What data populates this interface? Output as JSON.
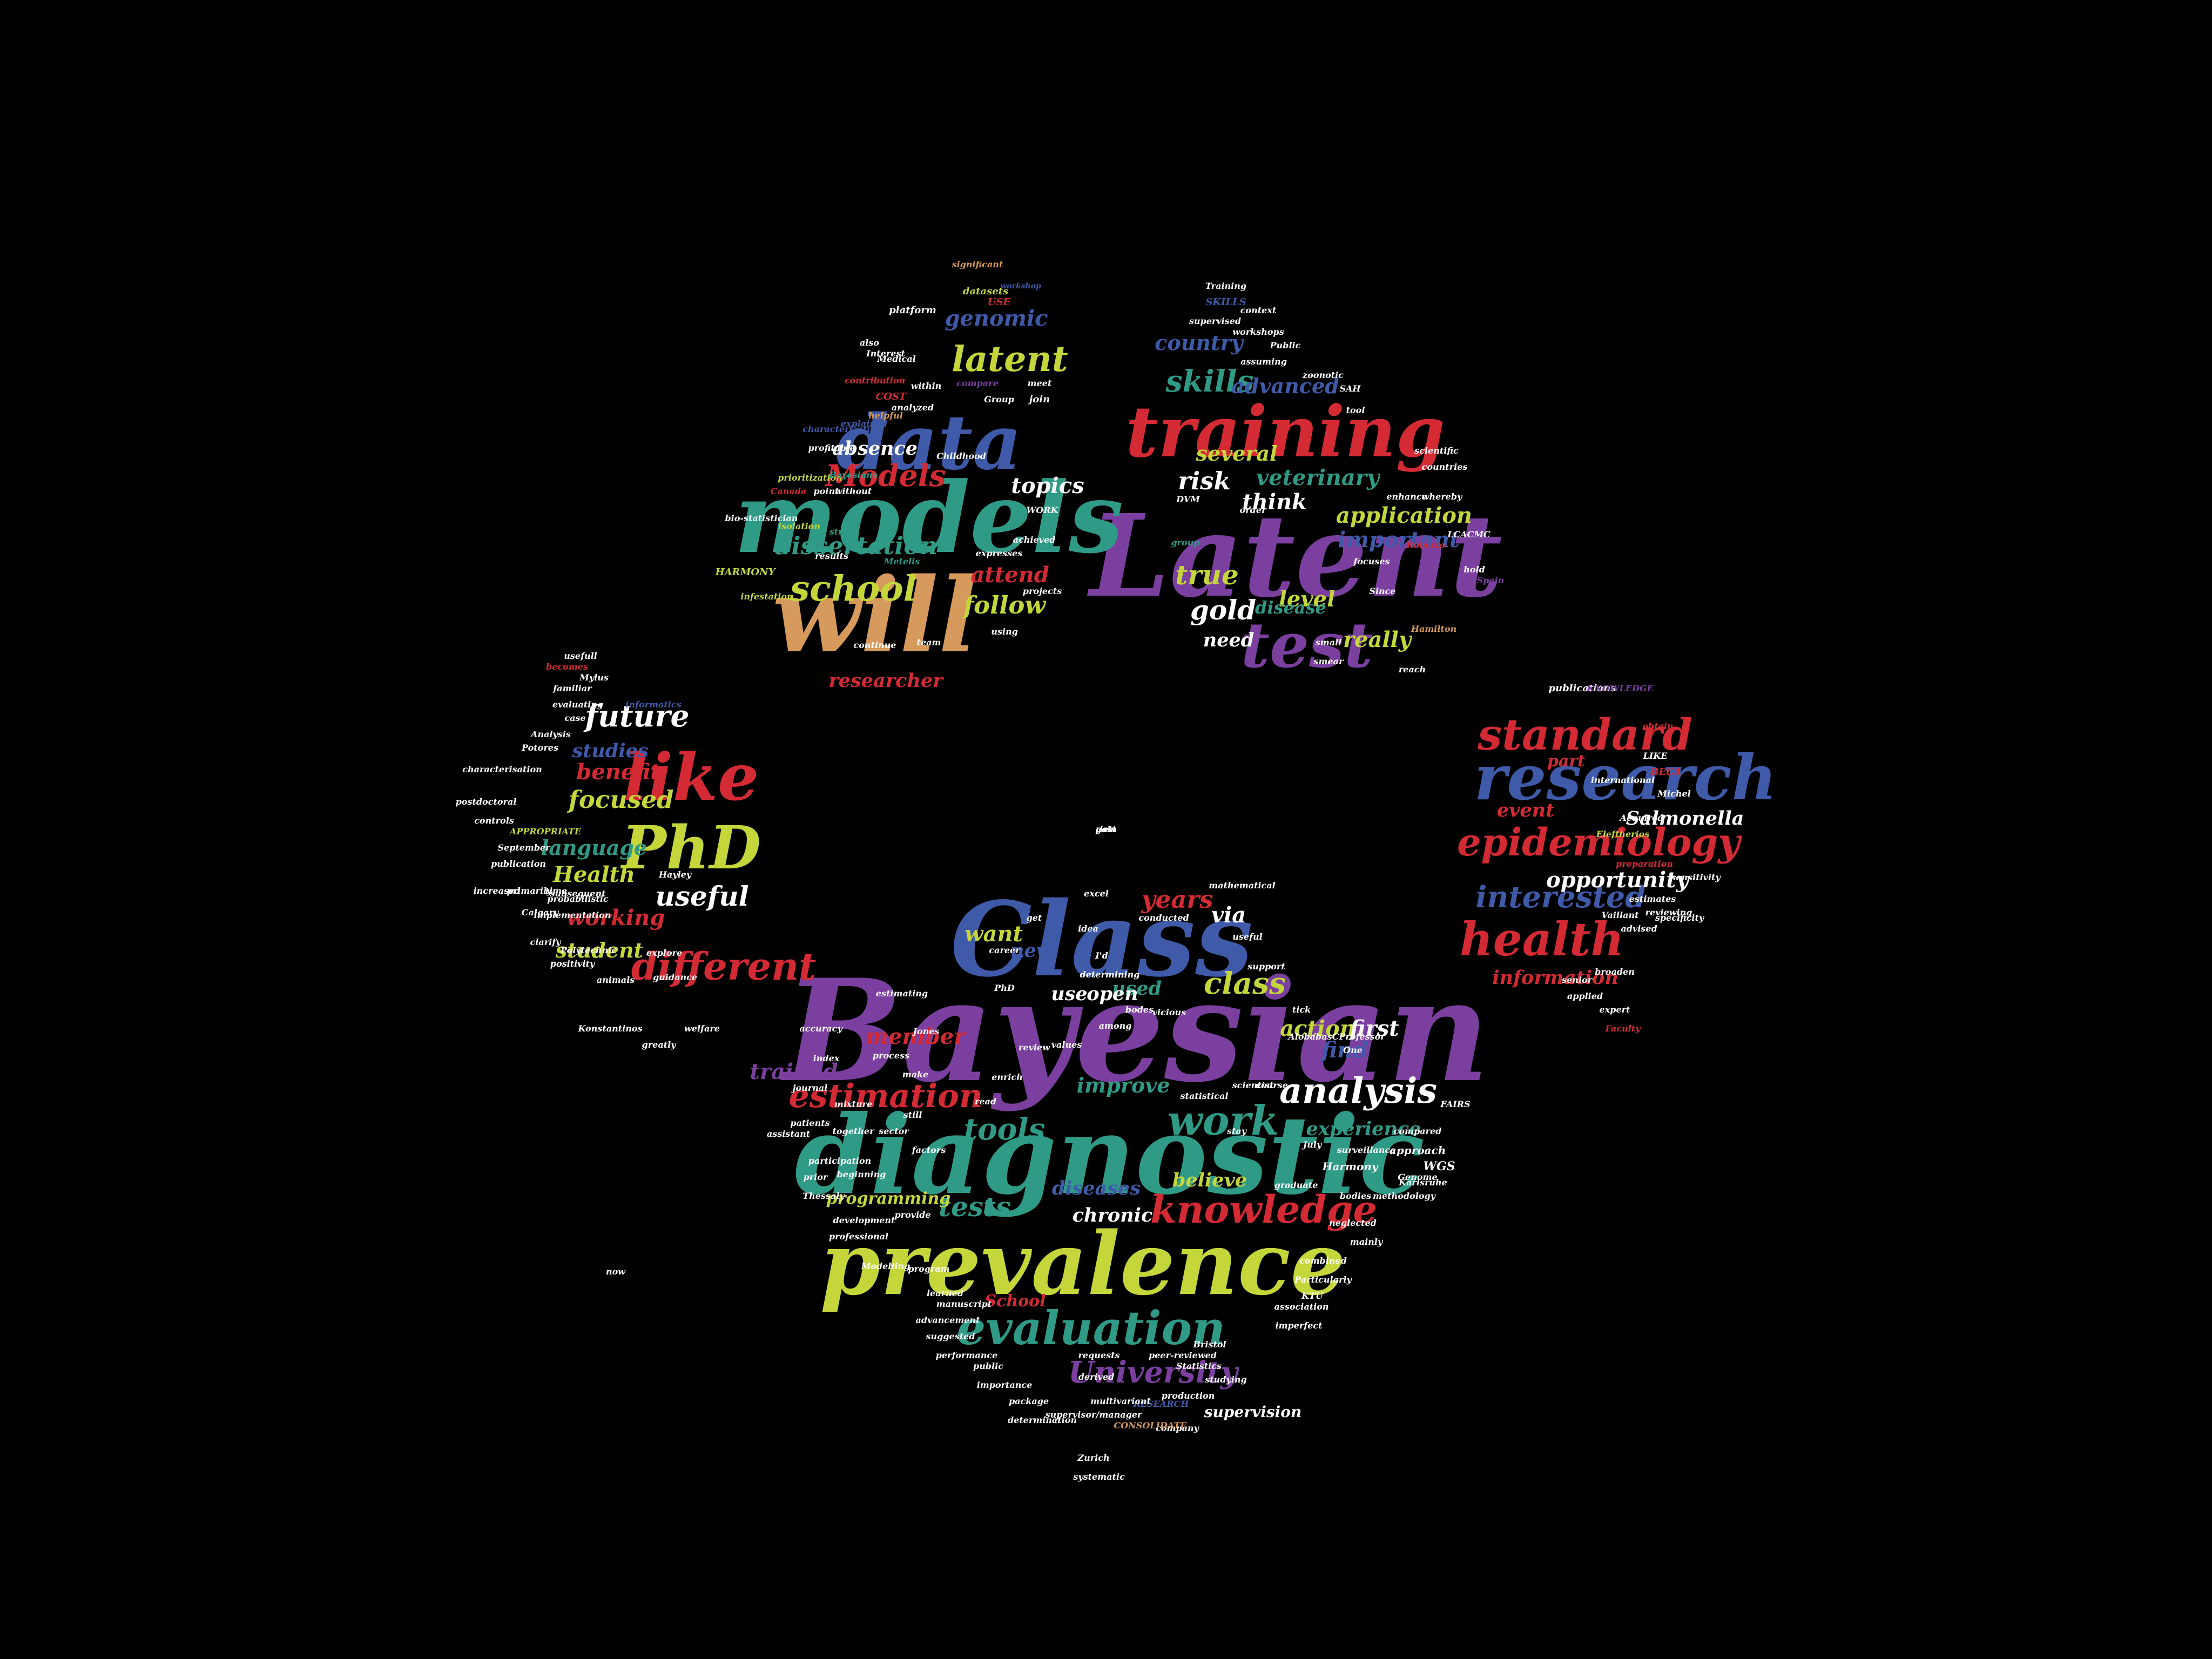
{
  "palette": {
    "purple": "#7b3fa0",
    "blue": "#3f5aa8",
    "teal": "#2f9a86",
    "green": "#c4d63a",
    "tan": "#d69a5c",
    "red": "#d42a34",
    "white": "#ffffff"
  },
  "words": [
    {
      "text": "Bayesian",
      "color": "purple"
    },
    {
      "text": "diagnostic",
      "color": "teal"
    },
    {
      "text": "prevalence",
      "color": "green"
    },
    {
      "text": "Class",
      "color": "blue"
    },
    {
      "text": "Latent",
      "color": "purple"
    },
    {
      "text": "models",
      "color": "teal"
    },
    {
      "text": "will",
      "color": "tan"
    },
    {
      "text": "data",
      "color": "blue"
    },
    {
      "text": "training",
      "color": "red"
    },
    {
      "text": "test",
      "color": "purple"
    },
    {
      "text": "research",
      "color": "blue"
    },
    {
      "text": "epidemiology",
      "color": "red"
    },
    {
      "text": "standard",
      "color": "red"
    },
    {
      "text": "health",
      "color": "red"
    },
    {
      "text": "PhD",
      "color": "green"
    },
    {
      "text": "like",
      "color": "red"
    },
    {
      "text": "useful",
      "color": "white"
    },
    {
      "text": "different",
      "color": "red"
    },
    {
      "text": "evaluation",
      "color": "teal"
    },
    {
      "text": "knowledge",
      "color": "red"
    },
    {
      "text": "analysis",
      "color": "white"
    },
    {
      "text": "estimation",
      "color": "red"
    },
    {
      "text": "work",
      "color": "teal"
    },
    {
      "text": "tools",
      "color": "teal"
    },
    {
      "text": "University",
      "color": "purple"
    },
    {
      "text": "tests",
      "color": "teal"
    },
    {
      "text": "class",
      "color": "green"
    },
    {
      "text": "years",
      "color": "red"
    },
    {
      "text": "latent",
      "color": "green"
    },
    {
      "text": "school",
      "color": "green"
    },
    {
      "text": "Models",
      "color": "red"
    },
    {
      "text": "skills",
      "color": "teal"
    },
    {
      "text": "gold",
      "color": "white"
    },
    {
      "text": "future",
      "color": "white"
    },
    {
      "text": "focused",
      "color": "green"
    },
    {
      "text": "interested",
      "color": "blue"
    },
    {
      "text": "opportunity",
      "color": "white"
    },
    {
      "text": "Salmonella",
      "color": "white"
    },
    {
      "text": "information",
      "color": "red"
    },
    {
      "text": "dissertation",
      "color": "teal"
    },
    {
      "text": "genomic",
      "color": "blue"
    },
    {
      "text": "absence",
      "color": "white"
    },
    {
      "text": "researcher",
      "color": "red"
    },
    {
      "text": "attend",
      "color": "red"
    },
    {
      "text": "follow",
      "color": "green"
    },
    {
      "text": "topics",
      "color": "white"
    },
    {
      "text": "veterinary",
      "color": "teal"
    },
    {
      "text": "important",
      "color": "blue"
    },
    {
      "text": "application",
      "color": "green"
    },
    {
      "text": "advanced",
      "color": "blue"
    },
    {
      "text": "several",
      "color": "green"
    },
    {
      "text": "country",
      "color": "blue"
    },
    {
      "text": "risk",
      "color": "white"
    },
    {
      "text": "true",
      "color": "green"
    },
    {
      "text": "think",
      "color": "white"
    },
    {
      "text": "really",
      "color": "green"
    },
    {
      "text": "level",
      "color": "green"
    },
    {
      "text": "need",
      "color": "white"
    },
    {
      "text": "disease",
      "color": "teal"
    },
    {
      "text": "event",
      "color": "red"
    },
    {
      "text": "part",
      "color": "red"
    },
    {
      "text": "benefit",
      "color": "red"
    },
    {
      "text": "studies",
      "color": "blue"
    },
    {
      "text": "language",
      "color": "teal"
    },
    {
      "text": "Health",
      "color": "green"
    },
    {
      "text": "student",
      "color": "green"
    },
    {
      "text": "working",
      "color": "red"
    },
    {
      "text": "via",
      "color": "white"
    },
    {
      "text": "want",
      "color": "green"
    },
    {
      "text": "used",
      "color": "teal"
    },
    {
      "text": "new",
      "color": "blue"
    },
    {
      "text": "use",
      "color": "white"
    },
    {
      "text": "open",
      "color": "white"
    },
    {
      "text": "action",
      "color": "green"
    },
    {
      "text": "first",
      "color": "white"
    },
    {
      "text": "find",
      "color": "blue"
    },
    {
      "text": "improve",
      "color": "teal"
    },
    {
      "text": "trained",
      "color": "purple"
    },
    {
      "text": "member",
      "color": "red"
    },
    {
      "text": "experience",
      "color": "teal"
    },
    {
      "text": "believe",
      "color": "green"
    },
    {
      "text": "chronic",
      "color": "white"
    },
    {
      "text": "diseases",
      "color": "blue"
    },
    {
      "text": "School",
      "color": "red"
    },
    {
      "text": "programming",
      "color": "green"
    },
    {
      "text": "supervision",
      "color": "white"
    },
    {
      "text": "Harmony",
      "color": "white"
    },
    {
      "text": "approach",
      "color": "white"
    },
    {
      "text": "WGS",
      "color": "white"
    },
    {
      "text": "platform",
      "color": "white"
    },
    {
      "text": "datasets",
      "color": "green"
    },
    {
      "text": "USE",
      "color": "red"
    },
    {
      "text": "workshop",
      "color": "blue"
    },
    {
      "text": "significant",
      "color": "tan"
    },
    {
      "text": "contribution",
      "color": "red"
    },
    {
      "text": "within",
      "color": "white"
    },
    {
      "text": "compare",
      "color": "purple"
    },
    {
      "text": "meet",
      "color": "white"
    },
    {
      "text": "COST",
      "color": "red"
    },
    {
      "text": "Group",
      "color": "white"
    },
    {
      "text": "join",
      "color": "white"
    },
    {
      "text": "explained",
      "color": "blue"
    },
    {
      "text": "analyzed",
      "color": "white"
    },
    {
      "text": "helpful",
      "color": "tan"
    },
    {
      "text": "characterization",
      "color": "blue"
    },
    {
      "text": "profitable",
      "color": "white"
    },
    {
      "text": "prioritization",
      "color": "green"
    },
    {
      "text": "Bayesians",
      "color": "teal"
    },
    {
      "text": "Canada",
      "color": "red"
    },
    {
      "text": "point",
      "color": "white"
    },
    {
      "text": "without",
      "color": "white"
    },
    {
      "text": "bio-statistician",
      "color": "white"
    },
    {
      "text": "isolation",
      "color": "green"
    },
    {
      "text": "study",
      "color": "teal"
    },
    {
      "text": "results",
      "color": "white"
    },
    {
      "text": "HARMONY",
      "color": "green"
    },
    {
      "text": "infestation",
      "color": "green"
    },
    {
      "text": "Metelis",
      "color": "teal"
    },
    {
      "text": "expresses",
      "color": "white"
    },
    {
      "text": "continue",
      "color": "white"
    },
    {
      "text": "team",
      "color": "white"
    },
    {
      "text": "using",
      "color": "white"
    },
    {
      "text": "Training",
      "color": "white"
    },
    {
      "text": "SKILLS",
      "color": "blue"
    },
    {
      "text": "context",
      "color": "white"
    },
    {
      "text": "supervised",
      "color": "white"
    },
    {
      "text": "workshops",
      "color": "white"
    },
    {
      "text": "Public",
      "color": "white"
    },
    {
      "text": "assuming",
      "color": "white"
    },
    {
      "text": "zoonotic",
      "color": "white"
    },
    {
      "text": "SAH",
      "color": "white"
    },
    {
      "text": "tool",
      "color": "white"
    },
    {
      "text": "scientific",
      "color": "white"
    },
    {
      "text": "countries",
      "color": "white"
    },
    {
      "text": "enhance",
      "color": "white"
    },
    {
      "text": "whereby",
      "color": "white"
    },
    {
      "text": "LCACMC",
      "color": "white"
    },
    {
      "text": "DVM",
      "color": "white"
    },
    {
      "text": "order",
      "color": "white"
    },
    {
      "text": "group",
      "color": "teal"
    },
    {
      "text": "focuses",
      "color": "white"
    },
    {
      "text": "Roberto",
      "color": "red"
    },
    {
      "text": "hold",
      "color": "white"
    },
    {
      "text": "Spain",
      "color": "purple"
    },
    {
      "text": "Since",
      "color": "white"
    },
    {
      "text": "small",
      "color": "white"
    },
    {
      "text": "Hamilton",
      "color": "tan"
    },
    {
      "text": "smear",
      "color": "white"
    },
    {
      "text": "reach",
      "color": "white"
    },
    {
      "text": "publications",
      "color": "white"
    },
    {
      "text": "KNOWLEDGE",
      "color": "purple"
    },
    {
      "text": "obtain",
      "color": "red"
    },
    {
      "text": "LIKE",
      "color": "white"
    },
    {
      "text": "BECA",
      "color": "red"
    },
    {
      "text": "international",
      "color": "white"
    },
    {
      "text": "Michel",
      "color": "white"
    },
    {
      "text": "Acquired",
      "color": "white"
    },
    {
      "text": "Eleftherios",
      "color": "green"
    },
    {
      "text": "preparation",
      "color": "red"
    },
    {
      "text": "sensitivity",
      "color": "white"
    },
    {
      "text": "specificity",
      "color": "white"
    },
    {
      "text": "advised",
      "color": "white"
    },
    {
      "text": "estimates",
      "color": "white"
    },
    {
      "text": "reviewing",
      "color": "white"
    },
    {
      "text": "Vaillant",
      "color": "white"
    },
    {
      "text": "broaden",
      "color": "white"
    },
    {
      "text": "senior",
      "color": "white"
    },
    {
      "text": "applied",
      "color": "white"
    },
    {
      "text": "expert",
      "color": "white"
    },
    {
      "text": "Faculty",
      "color": "red"
    },
    {
      "text": "usefull",
      "color": "white"
    },
    {
      "text": "becomes",
      "color": "red"
    },
    {
      "text": "Mylus",
      "color": "white"
    },
    {
      "text": "familiar",
      "color": "white"
    },
    {
      "text": "evaluating",
      "color": "white"
    },
    {
      "text": "informatics",
      "color": "blue"
    },
    {
      "text": "Analysis",
      "color": "white"
    },
    {
      "text": "Potores",
      "color": "white"
    },
    {
      "text": "characterisation",
      "color": "white"
    },
    {
      "text": "postdoctoral",
      "color": "white"
    },
    {
      "text": "controls",
      "color": "white"
    },
    {
      "text": "APPROPRIATE",
      "color": "green"
    },
    {
      "text": "September",
      "color": "white"
    },
    {
      "text": "publication",
      "color": "white"
    },
    {
      "text": "increased",
      "color": "white"
    },
    {
      "text": "primarily",
      "color": "white"
    },
    {
      "text": "Calgary",
      "color": "white"
    },
    {
      "text": "subsequent",
      "color": "white"
    },
    {
      "text": "implementation",
      "color": "white"
    },
    {
      "text": "probabilistic",
      "color": "white"
    },
    {
      "text": "Hayley",
      "color": "white"
    },
    {
      "text": "clarify",
      "color": "white"
    },
    {
      "text": "Polytechnic",
      "color": "white"
    },
    {
      "text": "positivity",
      "color": "white"
    },
    {
      "text": "explore",
      "color": "white"
    },
    {
      "text": "animals",
      "color": "white"
    },
    {
      "text": "guidance",
      "color": "white"
    },
    {
      "text": "Konstantinos",
      "color": "white"
    },
    {
      "text": "welfare",
      "color": "white"
    },
    {
      "text": "greatly",
      "color": "white"
    },
    {
      "text": "systematic",
      "color": "white"
    },
    {
      "text": "Zurich",
      "color": "white"
    },
    {
      "text": "company",
      "color": "white"
    },
    {
      "text": "CONSOLIDATE",
      "color": "tan"
    },
    {
      "text": "RESEARCH",
      "color": "blue"
    },
    {
      "text": "supervisor/manager",
      "color": "white"
    },
    {
      "text": "multivariant",
      "color": "white"
    },
    {
      "text": "production",
      "color": "white"
    },
    {
      "text": "peer-reviewed",
      "color": "white"
    },
    {
      "text": "Statistics",
      "color": "white"
    },
    {
      "text": "studying",
      "color": "white"
    },
    {
      "text": "Bristol",
      "color": "white"
    },
    {
      "text": "requests",
      "color": "white"
    },
    {
      "text": "imperfect",
      "color": "white"
    },
    {
      "text": "association",
      "color": "white"
    },
    {
      "text": "KTU",
      "color": "white"
    },
    {
      "text": "Particularly",
      "color": "white"
    },
    {
      "text": "combined",
      "color": "white"
    },
    {
      "text": "mainly",
      "color": "white"
    },
    {
      "text": "neglected",
      "color": "white"
    },
    {
      "text": "bodies",
      "color": "white"
    },
    {
      "text": "methodology",
      "color": "white"
    },
    {
      "text": "surveillance",
      "color": "white"
    },
    {
      "text": "July",
      "color": "white"
    },
    {
      "text": "compared",
      "color": "white"
    },
    {
      "text": "support",
      "color": "white"
    },
    {
      "text": "mathematical",
      "color": "white"
    },
    {
      "text": "determining",
      "color": "white"
    },
    {
      "text": "estimating",
      "color": "white"
    },
    {
      "text": "accuracy",
      "color": "white"
    },
    {
      "text": "Jones",
      "color": "white"
    },
    {
      "text": "index",
      "color": "white"
    },
    {
      "text": "journal",
      "color": "white"
    },
    {
      "text": "mixture",
      "color": "white"
    },
    {
      "text": "patients",
      "color": "white"
    },
    {
      "text": "together",
      "color": "white"
    },
    {
      "text": "participation",
      "color": "white"
    },
    {
      "text": "beginning",
      "color": "white"
    },
    {
      "text": "development",
      "color": "white"
    },
    {
      "text": "provide",
      "color": "white"
    },
    {
      "text": "professional",
      "color": "white"
    },
    {
      "text": "Modelling",
      "color": "white"
    },
    {
      "text": "program",
      "color": "white"
    },
    {
      "text": "learned",
      "color": "white"
    },
    {
      "text": "manuscript",
      "color": "white"
    },
    {
      "text": "advancement",
      "color": "white"
    },
    {
      "text": "suggested",
      "color": "white"
    },
    {
      "text": "performance",
      "color": "white"
    },
    {
      "text": "public",
      "color": "white"
    },
    {
      "text": "importance",
      "color": "white"
    },
    {
      "text": "package",
      "color": "white"
    },
    {
      "text": "determination",
      "color": "white"
    },
    {
      "text": "derived",
      "color": "white"
    },
    {
      "text": "graduate",
      "color": "white"
    },
    {
      "text": "stay",
      "color": "white"
    },
    {
      "text": "scientist",
      "color": "white"
    },
    {
      "text": "statistical",
      "color": "white"
    },
    {
      "text": "Karlsruhe",
      "color": "white"
    },
    {
      "text": "enrich",
      "color": "white"
    },
    {
      "text": "sector",
      "color": "white"
    },
    {
      "text": "assistant",
      "color": "white"
    },
    {
      "text": "Thessaly",
      "color": "white"
    },
    {
      "text": "prior",
      "color": "white"
    },
    {
      "text": "factors",
      "color": "white"
    },
    {
      "text": "FAIRS",
      "color": "white"
    },
    {
      "text": "Genome",
      "color": "white"
    },
    {
      "text": "AlobabasCProfessor",
      "color": "white"
    },
    {
      "text": "One",
      "color": "white"
    },
    {
      "text": "bodes",
      "color": "white"
    },
    {
      "text": "vicious",
      "color": "white"
    },
    {
      "text": "among",
      "color": "white"
    },
    {
      "text": "excel",
      "color": "white"
    },
    {
      "text": "conducted",
      "color": "white"
    },
    {
      "text": "useful",
      "color": "white"
    },
    {
      "text": "career",
      "color": "white"
    },
    {
      "text": "get",
      "color": "white"
    },
    {
      "text": "process",
      "color": "white"
    },
    {
      "text": "still",
      "color": "white"
    },
    {
      "text": "read",
      "color": "white"
    },
    {
      "text": "review",
      "color": "white"
    },
    {
      "text": "make",
      "color": "white"
    },
    {
      "text": "values",
      "color": "white"
    },
    {
      "text": "course",
      "color": "white"
    },
    {
      "text": "PhD",
      "color": "white"
    },
    {
      "text": "I'd",
      "color": "white"
    },
    {
      "text": "idea",
      "color": "white"
    },
    {
      "text": "tick",
      "color": "white"
    },
    {
      "text": "now",
      "color": "white"
    },
    {
      "text": "case",
      "color": "white"
    },
    {
      "text": "also",
      "color": "white"
    },
    {
      "text": "Interest",
      "color": "white"
    },
    {
      "text": "Medical",
      "color": "white"
    },
    {
      "text": "Childhood",
      "color": "white"
    },
    {
      "text": "WORK",
      "color": "white"
    },
    {
      "text": "achieved",
      "color": "white"
    },
    {
      "text": "projects",
      "color": "white"
    },
    {
      "text": "time",
      "color": "white"
    },
    {
      "text": "post",
      "color": "white"
    },
    {
      "text": "let",
      "color": "white"
    },
    {
      "text": "gain",
      "color": "white"
    }
  ]
}
